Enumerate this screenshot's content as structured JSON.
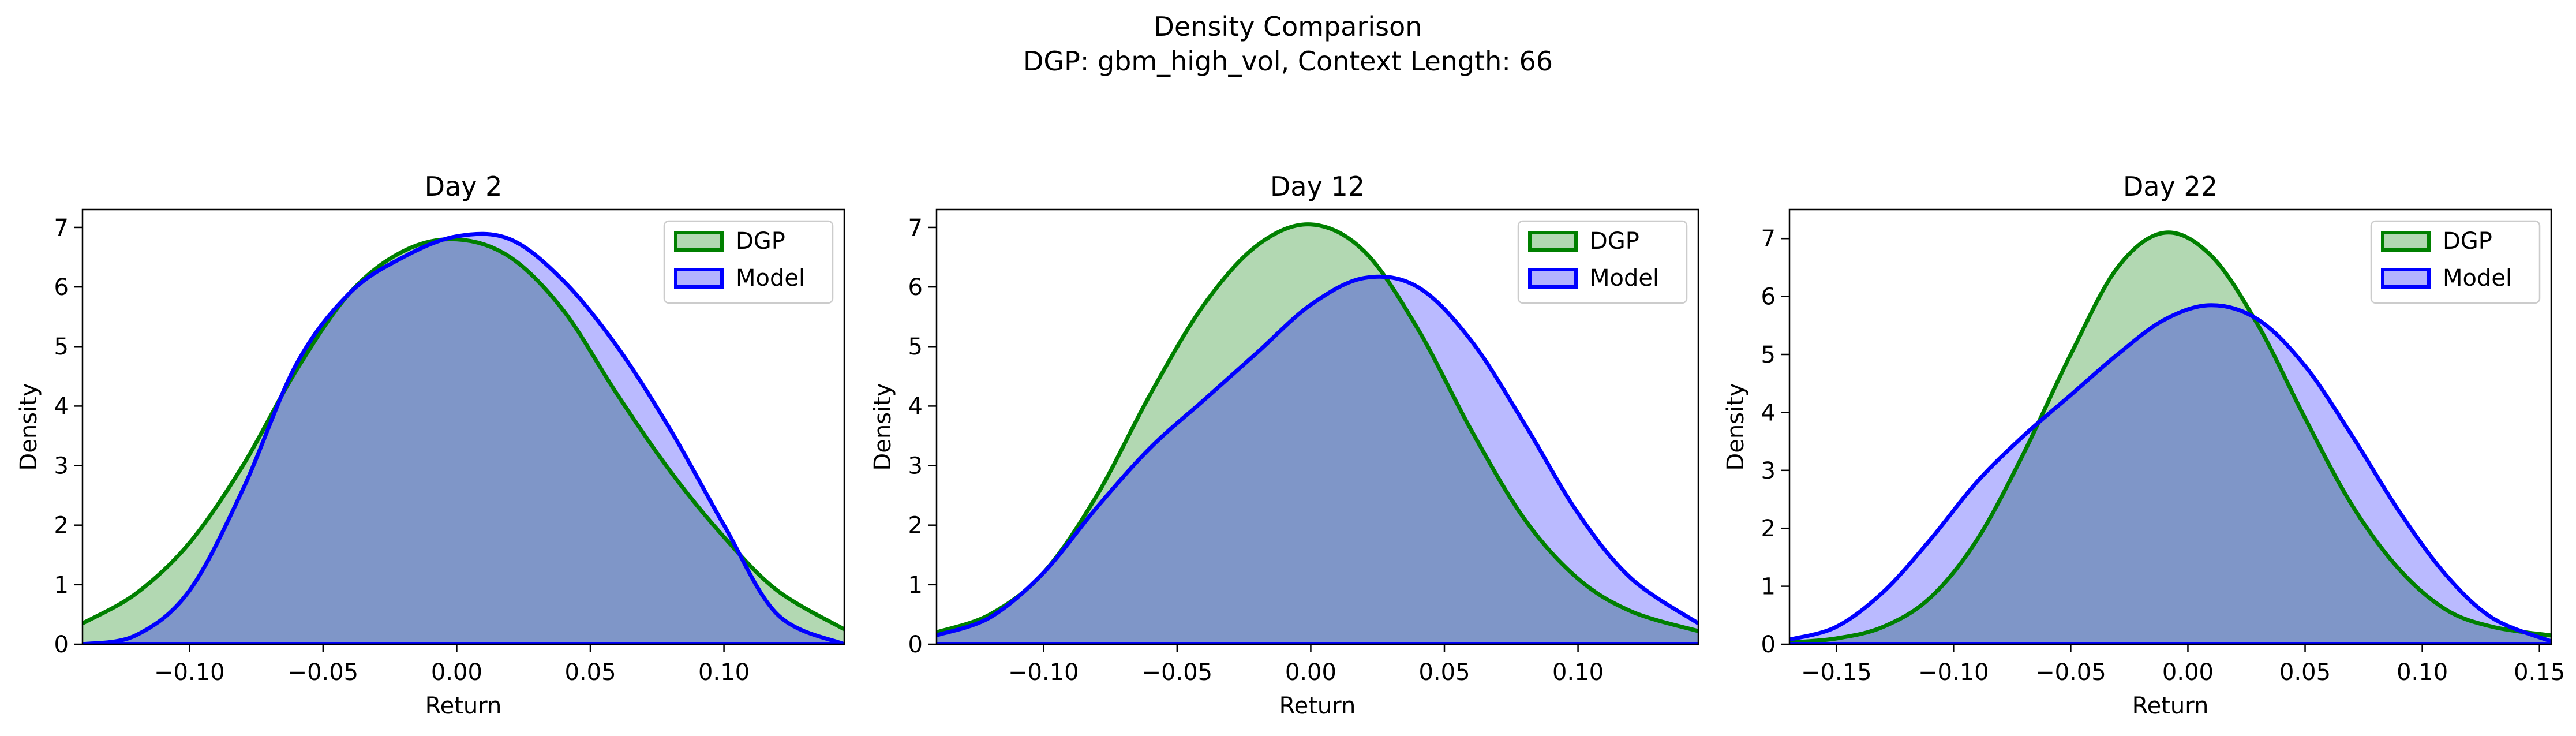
{
  "figure": {
    "title": "Density Comparison",
    "subtitle": "DGP: gbm_high_vol, Context Length: 66"
  },
  "colors": {
    "dgp_line": "#008000",
    "dgp_fill": "#b2d8b2",
    "model_line": "#0000ff",
    "model_fill": "#b2b2ff",
    "overlap_fill": "#7f96c8"
  },
  "chart_data": [
    {
      "type": "area",
      "title": "Day 2",
      "xlabel": "Return",
      "ylabel": "Density",
      "xlim": [
        -0.14,
        0.145
      ],
      "ylim": [
        0,
        7.3
      ],
      "xticks": [
        -0.1,
        -0.05,
        0.0,
        0.05,
        0.1
      ],
      "xtick_labels": [
        "−0.10",
        "−0.05",
        "0.00",
        "0.05",
        "0.10"
      ],
      "yticks": [
        0,
        1,
        2,
        3,
        4,
        5,
        6,
        7
      ],
      "ytick_labels": [
        "0",
        "1",
        "2",
        "3",
        "4",
        "5",
        "6",
        "7"
      ],
      "legend": "top-right",
      "series": [
        {
          "name": "DGP",
          "x": [
            -0.14,
            -0.12,
            -0.1,
            -0.08,
            -0.06,
            -0.04,
            -0.02,
            0.0,
            0.02,
            0.04,
            0.06,
            0.08,
            0.1,
            0.12,
            0.145
          ],
          "values": [
            0.35,
            0.85,
            1.7,
            3.0,
            4.6,
            5.9,
            6.6,
            6.8,
            6.5,
            5.6,
            4.2,
            2.9,
            1.8,
            0.9,
            0.25
          ]
        },
        {
          "name": "Model",
          "x": [
            -0.14,
            -0.12,
            -0.1,
            -0.08,
            -0.06,
            -0.04,
            -0.02,
            0.0,
            0.02,
            0.04,
            0.06,
            0.08,
            0.1,
            0.12,
            0.145
          ],
          "values": [
            0.0,
            0.15,
            0.9,
            2.6,
            4.7,
            5.9,
            6.5,
            6.85,
            6.8,
            6.1,
            5.0,
            3.6,
            2.0,
            0.5,
            0.0
          ]
        }
      ]
    },
    {
      "type": "area",
      "title": "Day 12",
      "xlabel": "Return",
      "ylabel": "Density",
      "xlim": [
        -0.14,
        0.145
      ],
      "ylim": [
        0,
        7.3
      ],
      "xticks": [
        -0.1,
        -0.05,
        0.0,
        0.05,
        0.1
      ],
      "xtick_labels": [
        "−0.10",
        "−0.05",
        "0.00",
        "0.05",
        "0.10"
      ],
      "yticks": [
        0,
        1,
        2,
        3,
        4,
        5,
        6,
        7
      ],
      "ytick_labels": [
        "0",
        "1",
        "2",
        "3",
        "4",
        "5",
        "6",
        "7"
      ],
      "legend": "top-right",
      "series": [
        {
          "name": "DGP",
          "x": [
            -0.14,
            -0.12,
            -0.1,
            -0.08,
            -0.06,
            -0.04,
            -0.02,
            0.0,
            0.02,
            0.04,
            0.06,
            0.08,
            0.1,
            0.12,
            0.145
          ],
          "values": [
            0.2,
            0.5,
            1.2,
            2.5,
            4.2,
            5.7,
            6.7,
            7.05,
            6.6,
            5.3,
            3.6,
            2.1,
            1.1,
            0.55,
            0.22
          ]
        },
        {
          "name": "Model",
          "x": [
            -0.14,
            -0.12,
            -0.1,
            -0.08,
            -0.06,
            -0.04,
            -0.02,
            0.0,
            0.02,
            0.04,
            0.06,
            0.08,
            0.1,
            0.12,
            0.145
          ],
          "values": [
            0.15,
            0.45,
            1.2,
            2.3,
            3.3,
            4.1,
            4.9,
            5.7,
            6.15,
            6.0,
            5.1,
            3.7,
            2.2,
            1.1,
            0.35
          ]
        }
      ]
    },
    {
      "type": "area",
      "title": "Day 22",
      "xlabel": "Return",
      "ylabel": "Density",
      "xlim": [
        -0.17,
        0.155
      ],
      "ylim": [
        0,
        7.5
      ],
      "xticks": [
        -0.15,
        -0.1,
        -0.05,
        0.0,
        0.05,
        0.1,
        0.15
      ],
      "xtick_labels": [
        "−0.15",
        "−0.10",
        "−0.05",
        "0.00",
        "0.05",
        "0.10",
        "0.15"
      ],
      "yticks": [
        0,
        1,
        2,
        3,
        4,
        5,
        6,
        7
      ],
      "ytick_labels": [
        "0",
        "1",
        "2",
        "3",
        "4",
        "5",
        "6",
        "7"
      ],
      "legend": "top-right",
      "series": [
        {
          "name": "DGP",
          "x": [
            -0.17,
            -0.15,
            -0.13,
            -0.11,
            -0.09,
            -0.07,
            -0.05,
            -0.03,
            -0.01,
            0.01,
            0.03,
            0.05,
            0.07,
            0.09,
            0.11,
            0.13,
            0.155
          ],
          "values": [
            0.03,
            0.1,
            0.3,
            0.8,
            1.8,
            3.3,
            5.0,
            6.5,
            7.1,
            6.7,
            5.5,
            3.9,
            2.4,
            1.3,
            0.6,
            0.3,
            0.15
          ]
        },
        {
          "name": "Model",
          "x": [
            -0.17,
            -0.15,
            -0.13,
            -0.11,
            -0.09,
            -0.07,
            -0.05,
            -0.03,
            -0.01,
            0.01,
            0.03,
            0.05,
            0.07,
            0.09,
            0.11,
            0.13,
            0.155
          ],
          "values": [
            0.08,
            0.3,
            0.9,
            1.8,
            2.8,
            3.6,
            4.3,
            5.0,
            5.6,
            5.85,
            5.6,
            4.8,
            3.6,
            2.3,
            1.2,
            0.45,
            0.05
          ]
        }
      ]
    }
  ]
}
